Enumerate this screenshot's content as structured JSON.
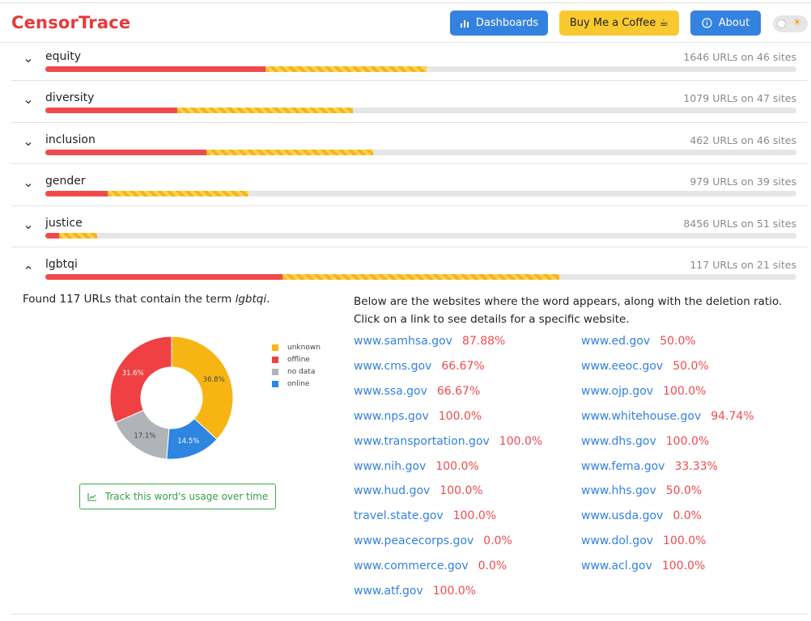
{
  "header": {
    "logo": "CensorTrace",
    "dashboards_label": "Dashboards",
    "coffee_label": "Buy Me a Coffee ☕",
    "about_label": "About"
  },
  "terms": [
    {
      "name": "equity",
      "count": "1646 URLs on 46 sites",
      "offline_pct": 29.3,
      "unknown_pct": 21.5,
      "expanded": false
    },
    {
      "name": "diversity",
      "count": "1079 URLs on 47 sites",
      "offline_pct": 17.6,
      "unknown_pct": 23.3,
      "expanded": false
    },
    {
      "name": "inclusion",
      "count": "462 URLs on 46 sites",
      "offline_pct": 21.4,
      "unknown_pct": 22.2,
      "expanded": false
    },
    {
      "name": "gender",
      "count": "979 URLs on 39 sites",
      "offline_pct": 8.3,
      "unknown_pct": 18.8,
      "expanded": false
    },
    {
      "name": "justice",
      "count": "8456 URLs on 51 sites",
      "offline_pct": 1.8,
      "unknown_pct": 5.1,
      "expanded": false
    },
    {
      "name": "lgbtqi",
      "count": "117 URLs on 21 sites",
      "offline_pct": 31.6,
      "unknown_pct": 36.8,
      "expanded": true
    }
  ],
  "detail": {
    "found_prefix": "Found 117 URLs that contain the term ",
    "found_term": "lgbtqi",
    "found_suffix": ".",
    "track_label": "Track this word's usage over time",
    "below_text": "Below are the websites where the word appears, along with the deletion ratio. Click on a link to see details for a specific website.",
    "chart_data": {
      "type": "pie",
      "title": "",
      "slices": [
        {
          "label": "unknown",
          "value": 36.8,
          "color": "#f7b514"
        },
        {
          "label": "online",
          "value": 14.5,
          "color": "#2f86e0"
        },
        {
          "label": "no data",
          "value": 17.1,
          "color": "#b0b4b9"
        },
        {
          "label": "offline",
          "value": 31.6,
          "color": "#ef4044"
        }
      ],
      "legend_order": [
        "unknown",
        "offline",
        "no data",
        "online"
      ],
      "legend_position": "right",
      "donut": true
    },
    "sites_left": [
      {
        "domain": "www.samhsa.gov",
        "pct": "87.88%"
      },
      {
        "domain": "www.cms.gov",
        "pct": "66.67%"
      },
      {
        "domain": "www.ssa.gov",
        "pct": "66.67%"
      },
      {
        "domain": "www.nps.gov",
        "pct": "100.0%"
      },
      {
        "domain": "www.transportation.gov",
        "pct": "100.0%"
      },
      {
        "domain": "www.nih.gov",
        "pct": "100.0%"
      },
      {
        "domain": "www.hud.gov",
        "pct": "100.0%"
      },
      {
        "domain": "travel.state.gov",
        "pct": "100.0%"
      },
      {
        "domain": "www.peacecorps.gov",
        "pct": "0.0%"
      },
      {
        "domain": "www.commerce.gov",
        "pct": "0.0%"
      },
      {
        "domain": "www.atf.gov",
        "pct": "100.0%"
      }
    ],
    "sites_right": [
      {
        "domain": "www.ed.gov",
        "pct": "50.0%"
      },
      {
        "domain": "www.eeoc.gov",
        "pct": "50.0%"
      },
      {
        "domain": "www.ojp.gov",
        "pct": "100.0%"
      },
      {
        "domain": "www.whitehouse.gov",
        "pct": "94.74%"
      },
      {
        "domain": "www.dhs.gov",
        "pct": "100.0%"
      },
      {
        "domain": "www.fema.gov",
        "pct": "33.33%"
      },
      {
        "domain": "www.hhs.gov",
        "pct": "50.0%"
      },
      {
        "domain": "www.usda.gov",
        "pct": "0.0%"
      },
      {
        "domain": "www.dol.gov",
        "pct": "100.0%"
      },
      {
        "domain": "www.acl.gov",
        "pct": "100.0%"
      }
    ]
  }
}
